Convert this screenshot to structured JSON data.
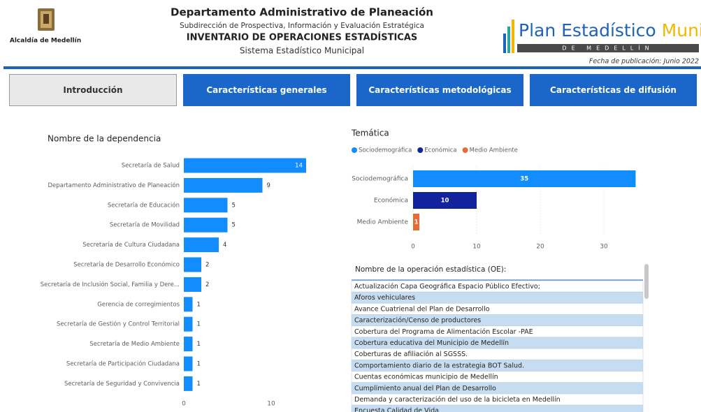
{
  "header": {
    "logo_text": "Alcaldía de Medellín",
    "title": "Departamento Administrativo de Planeación",
    "subtitle": "Subdirección de Prospectiva, Información y Evaluación Estratégica",
    "heading": "INVENTARIO DE OPERACIONES ESTADÍSTICAS",
    "system": "Sistema Estadístico Municipal",
    "brand_1": "Plan Estadístico",
    "brand_2": "Municipal",
    "brand_3": "DE MEDELLÍN",
    "date": "Fecha de publicación: Junio 2022"
  },
  "nav": [
    "Introducción",
    "Características generales",
    "Características metodológicas",
    "Características de difusión"
  ],
  "chart_data": [
    {
      "type": "hbar",
      "title": "Nombre de la dependencia",
      "color": "#118dff",
      "categories": [
        "Secretaría de Salud",
        "Departamento Administrativo de Planeación",
        "Secretaría de Educación",
        "Secretaría de Movilidad",
        "Secretaría de Cultura Ciudadana",
        "Secretaría de Desarrollo Económico",
        "Secretaría de Inclusión Social, Familia y Dere...",
        "Gerencia de corregimientos",
        "Secretaría de Gestión y Control Territorial",
        "Secretaría de Medio Ambiente",
        "Secretaría de Participación Ciudadana",
        "Secretaría de Seguridad y Convivencia"
      ],
      "values": [
        14,
        9,
        5,
        5,
        4,
        2,
        2,
        1,
        1,
        1,
        1,
        1
      ],
      "xlim": [
        0,
        14
      ],
      "xticks": [
        0,
        10
      ]
    },
    {
      "type": "hbar",
      "title": "Temática",
      "categories": [
        "Sociodemográfica",
        "Económica",
        "Medio Ambiente"
      ],
      "colors": [
        "#118dff",
        "#12239e",
        "#e66c37"
      ],
      "values": [
        35,
        10,
        1
      ],
      "xlim": [
        0,
        35
      ],
      "xticks": [
        0,
        10,
        20,
        30
      ],
      "grid": true
    }
  ],
  "table": {
    "header": "Nombre de la operación estadística (OE):",
    "rows": [
      "Actualización Capa Geográfica Espacio Público Efectivo;",
      "Aforos vehiculares",
      "Avance Cuatrienal del Plan de Desarrollo",
      "Caracterización/Censo de productores",
      "Cobertura del Programa de Alimentación Escolar -PAE",
      "Cobertura educativa del Municipio de Medellín",
      "Coberturas de afiliación al SGSSS.",
      "Comportamiento diario de la estrategia BOT Salud.",
      "Cuentas económicas municipio de Medellín",
      "Cumplimiento anual del Plan de Desarrollo",
      "Demanda y caracterización del uso de la bicicleta en Medellín",
      "Encuesta Calidad de Vida"
    ]
  }
}
